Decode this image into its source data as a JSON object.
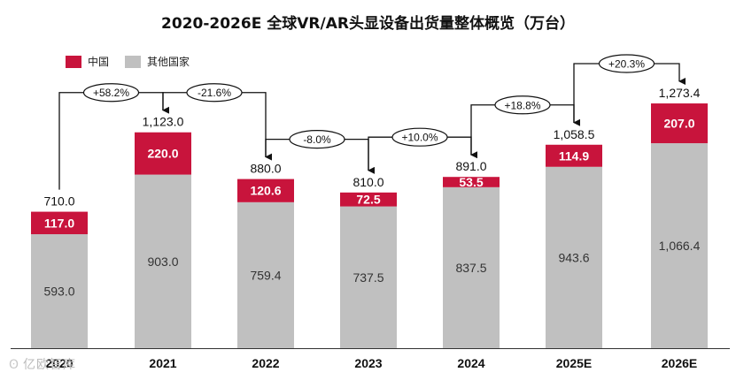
{
  "title": "2020-2026E 全球VR/AR头显设备出货量整体概览（万台）",
  "legend": [
    {
      "name": "中国",
      "color": "#c8143c"
    },
    {
      "name": "其他国家",
      "color": "#c0c0c0"
    }
  ],
  "watermark": "亿欧智库",
  "chart_data": {
    "type": "bar",
    "stacked": true,
    "title": "2020-2026E 全球VR/AR头显设备出货量整体概览（万台）",
    "unit": "万台",
    "categories": [
      "2020",
      "2021",
      "2022",
      "2023",
      "2024",
      "2025E",
      "2026E"
    ],
    "series": [
      {
        "name": "其他国家",
        "color": "#c0c0c0",
        "values": [
          593.0,
          903.0,
          759.4,
          737.5,
          837.5,
          943.6,
          1066.4
        ],
        "labels": [
          "593.0",
          "903.0",
          "759.4",
          "737.5",
          "837.5",
          "943.6",
          "1,066.4"
        ]
      },
      {
        "name": "中国",
        "color": "#c8143c",
        "values": [
          117.0,
          220.0,
          120.6,
          72.5,
          53.5,
          114.9,
          207.0
        ],
        "labels": [
          "117.0",
          "220.0",
          "120.6",
          "72.5",
          "53.5",
          "114.9",
          "207.0"
        ]
      }
    ],
    "totals": [
      710.0,
      1123.0,
      880.0,
      810.0,
      891.0,
      1058.5,
      1273.4
    ],
    "total_labels": [
      "710.0",
      "1,123.0",
      "880.0",
      "810.0",
      "891.0",
      "1,058.5",
      "1,273.4"
    ],
    "growth": [
      "+58.2%",
      "-21.6%",
      "-8.0%",
      "+10.0%",
      "+18.8%",
      "+20.3%"
    ],
    "ylim": [
      0,
      1400
    ],
    "xlabel": "",
    "ylabel": ""
  }
}
